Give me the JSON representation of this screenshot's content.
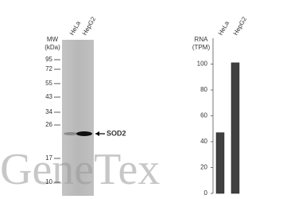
{
  "blot": {
    "mw_label": "MW",
    "kda_label": "(kDa)",
    "lanes": [
      "HeLa",
      "HepG2"
    ],
    "markers": [
      95,
      72,
      55,
      43,
      34,
      26,
      17,
      10
    ],
    "band_label": "SOD2"
  },
  "watermark": "GeneTex",
  "chart_data": {
    "type": "bar",
    "y_label_line1": "RNA",
    "y_label_line2": "(TPM)",
    "categories": [
      "HeLa",
      "HepG2"
    ],
    "values": [
      47,
      101
    ],
    "color": "#404040",
    "ylim": [
      0,
      120
    ],
    "yticks": [
      0,
      20,
      40,
      60,
      80,
      100
    ]
  }
}
